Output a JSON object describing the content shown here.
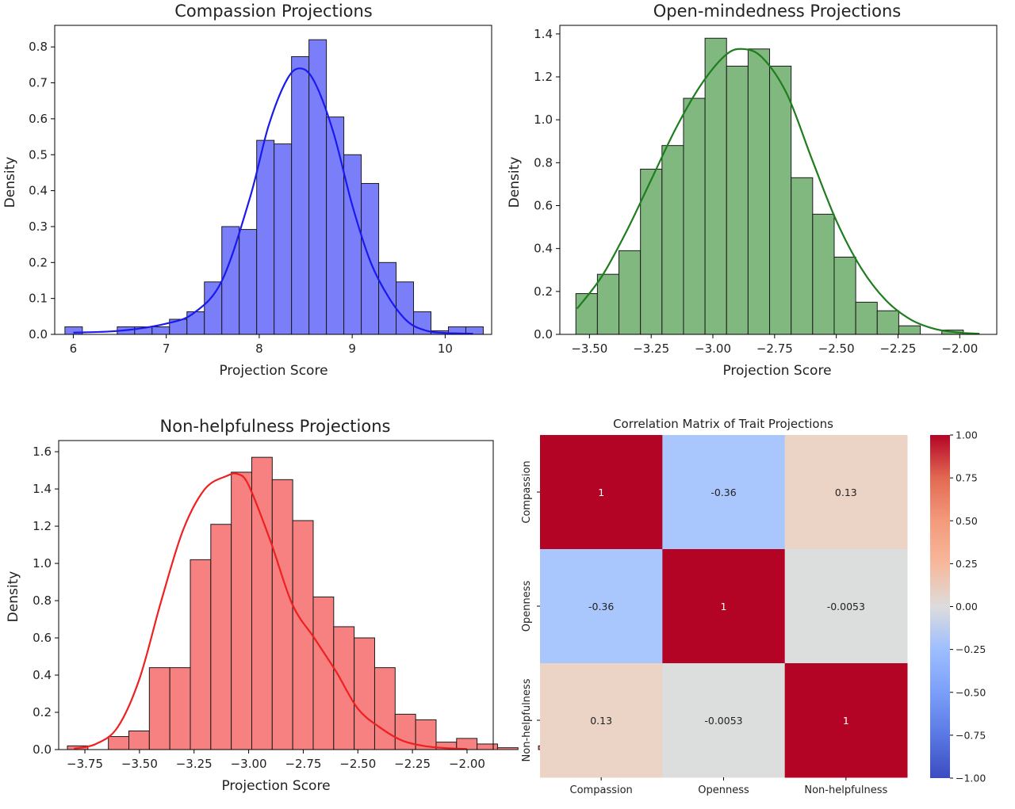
{
  "chart_data": [
    {
      "type": "histogram",
      "title": "Compassion Projections",
      "xlabel": "Projection Score",
      "ylabel": "Density",
      "xlim": [
        5.8,
        10.5
      ],
      "ylim": [
        0,
        0.86
      ],
      "xticks": [
        6,
        7,
        8,
        9,
        10
      ],
      "xtick_labels": [
        "6",
        "7",
        "8",
        "9",
        "10"
      ],
      "yticks": [
        0.0,
        0.1,
        0.2,
        0.3,
        0.4,
        0.5,
        0.6,
        0.7,
        0.8
      ],
      "ytick_labels": [
        "0.0",
        "0.1",
        "0.2",
        "0.3",
        "0.4",
        "0.5",
        "0.6",
        "0.7",
        "0.8"
      ],
      "bin_start": 5.91,
      "bin_width": 0.1875,
      "densities": [
        0.021,
        0,
        0,
        0.021,
        0.021,
        0.021,
        0.042,
        0.063,
        0.146,
        0.3,
        0.292,
        0.54,
        0.53,
        0.773,
        0.82,
        0.605,
        0.5,
        0.42,
        0.2,
        0.146,
        0.063,
        0.01,
        0.021,
        0.021
      ],
      "kde_x": [
        6.0,
        6.5,
        7.0,
        7.3,
        7.6,
        7.9,
        8.1,
        8.3,
        8.45,
        8.6,
        8.8,
        9.0,
        9.2,
        9.4,
        9.6,
        9.8,
        10.0,
        10.3
      ],
      "kde_y": [
        0.005,
        0.01,
        0.03,
        0.06,
        0.15,
        0.38,
        0.58,
        0.71,
        0.74,
        0.7,
        0.56,
        0.36,
        0.2,
        0.1,
        0.035,
        0.01,
        0.004,
        0.002
      ],
      "bar_color": "#7a7ef8",
      "kde_color": "#1a1aee"
    },
    {
      "type": "histogram",
      "title": "Open-mindedness Projections",
      "xlabel": "Projection Score",
      "ylabel": "Density",
      "xlim": [
        -3.62,
        -1.85
      ],
      "ylim": [
        0,
        1.44
      ],
      "xticks": [
        -3.5,
        -3.25,
        -3.0,
        -2.75,
        -2.5,
        -2.25,
        -2.0
      ],
      "xtick_labels": [
        "−3.50",
        "−3.25",
        "−3.00",
        "−2.75",
        "−2.50",
        "−2.25",
        "−2.00"
      ],
      "yticks": [
        0.0,
        0.2,
        0.4,
        0.6,
        0.8,
        1.0,
        1.2,
        1.4
      ],
      "ytick_labels": [
        "0.0",
        "0.2",
        "0.4",
        "0.6",
        "0.8",
        "1.0",
        "1.2",
        "1.4"
      ],
      "bin_start": -3.555,
      "bin_width": 0.0872,
      "densities": [
        0.19,
        0.28,
        0.39,
        0.77,
        0.88,
        1.1,
        1.38,
        1.25,
        1.33,
        1.25,
        0.73,
        0.56,
        0.36,
        0.15,
        0.11,
        0.04,
        0,
        0.02
      ],
      "kde_x": [
        -3.55,
        -3.45,
        -3.35,
        -3.25,
        -3.15,
        -3.05,
        -2.95,
        -2.88,
        -2.8,
        -2.7,
        -2.6,
        -2.5,
        -2.4,
        -2.3,
        -2.2,
        -2.1,
        -2.0,
        -1.92
      ],
      "kde_y": [
        0.12,
        0.27,
        0.48,
        0.72,
        0.96,
        1.16,
        1.3,
        1.33,
        1.29,
        1.12,
        0.82,
        0.53,
        0.31,
        0.16,
        0.07,
        0.025,
        0.008,
        0.003
      ],
      "bar_color": "#80b87f",
      "kde_color": "#1e7d1e"
    },
    {
      "type": "histogram",
      "title": "Non-helpfulness Projections",
      "xlabel": "Projection Score",
      "ylabel": "Density",
      "xlim": [
        -3.87,
        -1.88
      ],
      "ylim": [
        0,
        1.66
      ],
      "xticks": [
        -3.75,
        -3.5,
        -3.25,
        -3.0,
        -2.75,
        -2.5,
        -2.25,
        -2.0
      ],
      "xtick_labels": [
        "−3.75",
        "−3.50",
        "−3.25",
        "−3.00",
        "−2.75",
        "−2.50",
        "−2.25",
        "−2.00"
      ],
      "yticks": [
        0.0,
        0.2,
        0.4,
        0.6,
        0.8,
        1.0,
        1.2,
        1.4,
        1.6
      ],
      "ytick_labels": [
        "0.0",
        "0.2",
        "0.4",
        "0.6",
        "0.8",
        "1.0",
        "1.2",
        "1.4",
        "1.6"
      ],
      "bin_start": -3.83,
      "bin_width": 0.0938,
      "densities": [
        0.02,
        0,
        0.07,
        0.1,
        0.44,
        0.44,
        1.02,
        1.21,
        1.49,
        1.57,
        1.45,
        1.23,
        0.82,
        0.66,
        0.6,
        0.44,
        0.19,
        0.16,
        0.04,
        0.06,
        0.03,
        0.01,
        0,
        0.02
      ],
      "kde_x": [
        -3.8,
        -3.7,
        -3.6,
        -3.5,
        -3.4,
        -3.3,
        -3.2,
        -3.1,
        -3.05,
        -3.0,
        -2.9,
        -2.8,
        -2.7,
        -2.6,
        -2.5,
        -2.4,
        -2.3,
        -2.2,
        -2.1,
        -2.0
      ],
      "kde_y": [
        0.005,
        0.03,
        0.12,
        0.38,
        0.8,
        1.18,
        1.4,
        1.47,
        1.48,
        1.42,
        1.12,
        0.78,
        0.6,
        0.42,
        0.22,
        0.12,
        0.05,
        0.02,
        0.008,
        0.003
      ],
      "bar_color": "#f68180",
      "kde_color": "#ee2020"
    },
    {
      "type": "heatmap",
      "title": "Correlation Matrix of Trait Projections",
      "row_labels": [
        "Compassion",
        "Openness",
        "Non-helpfulness"
      ],
      "col_labels": [
        "Compassion",
        "Openness",
        "Non-helpfulness"
      ],
      "values": [
        [
          1,
          -0.36,
          0.13
        ],
        [
          -0.36,
          1,
          -0.0053
        ],
        [
          0.13,
          -0.0053,
          1
        ]
      ],
      "cell_labels": [
        [
          "1",
          "-0.36",
          "0.13"
        ],
        [
          "-0.36",
          "1",
          "-0.0053"
        ],
        [
          "0.13",
          "-0.0053",
          "1"
        ]
      ],
      "cell_colors": [
        [
          "#b40426",
          "#aac7fd",
          "#ebd3c6"
        ],
        [
          "#aac7fd",
          "#b40426",
          "#dcdddd"
        ],
        [
          "#ebd3c6",
          "#dcdddd",
          "#b40426"
        ]
      ],
      "colormap": "coolwarm",
      "vmin": -1,
      "vmax": 1,
      "colorbar_ticks": [
        1.0,
        0.75,
        0.5,
        0.25,
        0.0,
        -0.25,
        -0.5,
        -0.75,
        -1.0
      ],
      "colorbar_tick_labels": [
        "1.00",
        "0.75",
        "0.50",
        "0.25",
        "0.00",
        "−0.25",
        "−0.50",
        "−0.75",
        "−1.00"
      ]
    }
  ]
}
